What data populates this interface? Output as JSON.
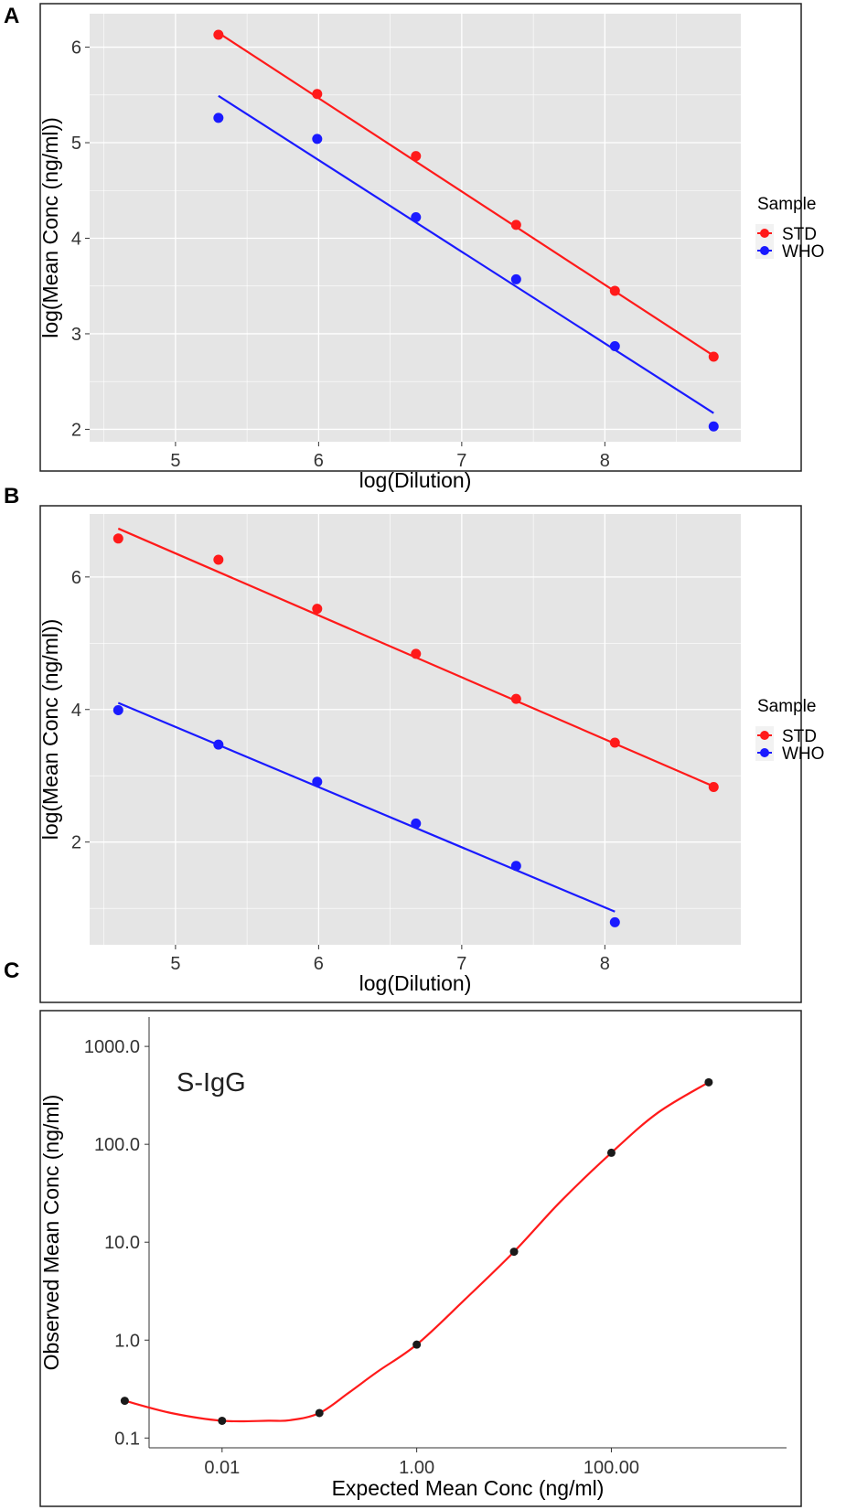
{
  "panel_labels": [
    "A",
    "B",
    "C"
  ],
  "colors": {
    "std": "#ff1a1a",
    "who": "#1a1aff",
    "panel_bg": "#e5e5e5",
    "grid": "#ffffff",
    "fit_c": "#ff1a1a",
    "points_c": "#1a1a1a"
  },
  "chart_data": [
    {
      "panel": "A",
      "type": "scatter",
      "xlabel": "log(Dilution)",
      "ylabel": "log(Mean Conc (ng/ml))",
      "xlim": [
        4.4,
        8.95
      ],
      "ylim": [
        1.87,
        6.35
      ],
      "xticks": [
        5,
        6,
        7,
        8
      ],
      "xtick_labels": [
        "5",
        "6",
        "7",
        "8"
      ],
      "yticks": [
        2,
        3,
        4,
        5,
        6
      ],
      "ytick_labels": [
        "2",
        "3",
        "4",
        "5",
        "6"
      ],
      "legend": {
        "title": "Sample",
        "position": "right",
        "entries": [
          "STD",
          "WHO"
        ]
      },
      "series": [
        {
          "name": "STD",
          "color_key": "std",
          "x": [
            5.3,
            5.99,
            6.68,
            7.38,
            8.07,
            8.76
          ],
          "y": [
            6.13,
            5.51,
            4.86,
            4.14,
            3.45,
            2.76
          ],
          "fit": [
            [
              5.3,
              6.15
            ],
            [
              8.76,
              2.77
            ]
          ]
        },
        {
          "name": "WHO",
          "color_key": "who",
          "x": [
            5.3,
            5.99,
            6.68,
            7.38,
            8.07,
            8.76
          ],
          "y": [
            5.26,
            5.04,
            4.22,
            3.57,
            2.87,
            2.03
          ],
          "fit": [
            [
              5.3,
              5.49
            ],
            [
              8.76,
              2.17
            ]
          ]
        }
      ]
    },
    {
      "panel": "B",
      "type": "scatter",
      "xlabel": "log(Dilution)",
      "ylabel": "log(Mean Conc (ng/ml))",
      "xlim": [
        4.4,
        8.95
      ],
      "ylim": [
        0.45,
        6.95
      ],
      "xticks": [
        5,
        6,
        7,
        8
      ],
      "xtick_labels": [
        "5",
        "6",
        "7",
        "8"
      ],
      "yticks": [
        2,
        4,
        6
      ],
      "ytick_labels": [
        "2",
        "4",
        "6"
      ],
      "legend": {
        "title": "Sample",
        "position": "right",
        "entries": [
          "STD",
          "WHO"
        ]
      },
      "series": [
        {
          "name": "STD",
          "color_key": "std",
          "x": [
            4.6,
            5.3,
            5.99,
            6.68,
            7.38,
            8.07,
            8.76
          ],
          "y": [
            6.58,
            6.26,
            5.52,
            4.84,
            4.16,
            3.5,
            2.83
          ],
          "fit": [
            [
              4.6,
              6.73
            ],
            [
              8.76,
              2.84
            ]
          ]
        },
        {
          "name": "WHO",
          "color_key": "who",
          "x": [
            4.6,
            5.3,
            5.99,
            6.68,
            7.38,
            8.07
          ],
          "y": [
            3.99,
            3.47,
            2.91,
            2.28,
            1.64,
            0.79
          ],
          "fit": [
            [
              4.6,
              4.1
            ],
            [
              8.07,
              0.95
            ]
          ]
        }
      ]
    },
    {
      "panel": "C",
      "type": "line",
      "scale": "log-log",
      "annotation": "S-IgG",
      "xlabel": "Expected Mean Conc (ng/ml)",
      "ylabel": "Observed Mean Conc (ng/ml)",
      "xlim_log10": [
        -2.75,
        3.8
      ],
      "ylim_log10": [
        -1.1,
        3.3
      ],
      "xticks_log10": [
        -2,
        0,
        2
      ],
      "xtick_labels": [
        "0.01",
        "1.00",
        "100.00"
      ],
      "yticks_log10": [
        -1,
        0,
        1,
        2,
        3
      ],
      "ytick_labels": [
        "0.1",
        "1.0",
        "10.0",
        "100.0",
        "1000.0"
      ],
      "series": [
        {
          "name": "S-IgG",
          "x": [
            0.001,
            0.01,
            0.1,
            1.0,
            10.0,
            100.0,
            1000.0
          ],
          "y": [
            0.24,
            0.15,
            0.18,
            0.9,
            8.0,
            82.0,
            430.0
          ]
        }
      ],
      "fit_curve": {
        "x": [
          0.001,
          0.003,
          0.01,
          0.03,
          0.05,
          0.1,
          0.2,
          0.4,
          1.0,
          3.0,
          10.0,
          30.0,
          100.0,
          300.0,
          1000.0
        ],
        "y": [
          0.24,
          0.18,
          0.15,
          0.15,
          0.152,
          0.18,
          0.29,
          0.48,
          0.9,
          2.5,
          8.0,
          26.0,
          82.0,
          210.0,
          430.0
        ]
      }
    }
  ]
}
